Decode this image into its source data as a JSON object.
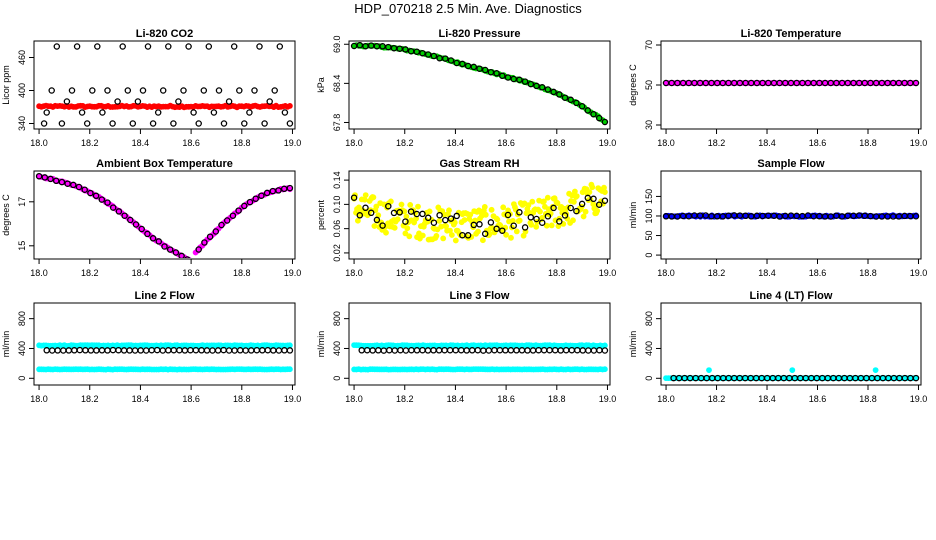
{
  "page_title": "HDP_070218  2.5 Min. Ave. Diagnostics",
  "colors": {
    "red": "#ff0000",
    "green": "#00cc00",
    "magenta": "#ff00ff",
    "yellow": "#ffff00",
    "blue": "#0000ff",
    "cyan": "#00ffff",
    "black": "#000000"
  },
  "chart_data": [
    {
      "type": "scatter",
      "title": "Li-820 CO2",
      "ylabel": "Licor ppm",
      "xlabel": "",
      "xlim": [
        17.98,
        19.01
      ],
      "ylim": [
        330,
        490
      ],
      "xticks": [
        18.0,
        18.2,
        18.4,
        18.6,
        18.8,
        19.0
      ],
      "xtick_labels": [
        "18.0",
        "18.2",
        "18.4",
        "18.6",
        "18.8",
        "19.0"
      ],
      "yticks": [
        340,
        400,
        460
      ],
      "ytick_labels": [
        "340",
        "400",
        "460"
      ],
      "series": [
        {
          "color": "red",
          "filled": true,
          "x_range": [
            18.0,
            18.99
          ],
          "count": 110,
          "model": "const",
          "y": 371,
          "jitter": 1.5
        },
        {
          "color": "black",
          "filled": false,
          "points": [
            [
              18.02,
              340
            ],
            [
              18.03,
              360
            ],
            [
              18.05,
              400
            ],
            [
              18.07,
              480
            ],
            [
              18.09,
              340
            ],
            [
              18.11,
              380
            ],
            [
              18.13,
              400
            ],
            [
              18.15,
              480
            ],
            [
              18.17,
              360
            ],
            [
              18.19,
              340
            ],
            [
              18.21,
              400
            ],
            [
              18.23,
              480
            ],
            [
              18.25,
              360
            ],
            [
              18.27,
              400
            ],
            [
              18.29,
              340
            ],
            [
              18.31,
              380
            ],
            [
              18.33,
              480
            ],
            [
              18.35,
              400
            ],
            [
              18.37,
              340
            ],
            [
              18.39,
              380
            ],
            [
              18.41,
              400
            ],
            [
              18.43,
              480
            ],
            [
              18.45,
              340
            ],
            [
              18.47,
              360
            ],
            [
              18.49,
              400
            ],
            [
              18.51,
              480
            ],
            [
              18.53,
              340
            ],
            [
              18.55,
              380
            ],
            [
              18.57,
              400
            ],
            [
              18.59,
              480
            ],
            [
              18.61,
              360
            ],
            [
              18.63,
              340
            ],
            [
              18.65,
              400
            ],
            [
              18.67,
              480
            ],
            [
              18.69,
              360
            ],
            [
              18.71,
              400
            ],
            [
              18.73,
              340
            ],
            [
              18.75,
              380
            ],
            [
              18.77,
              480
            ],
            [
              18.79,
              400
            ],
            [
              18.81,
              340
            ],
            [
              18.83,
              360
            ],
            [
              18.85,
              400
            ],
            [
              18.87,
              480
            ],
            [
              18.89,
              340
            ],
            [
              18.91,
              380
            ],
            [
              18.93,
              400
            ],
            [
              18.95,
              480
            ],
            [
              18.97,
              360
            ],
            [
              18.99,
              340
            ]
          ]
        }
      ]
    },
    {
      "type": "scatter",
      "title": "Li-820 Pressure",
      "ylabel": "kPa",
      "xlabel": "",
      "xlim": [
        17.98,
        19.01
      ],
      "ylim": [
        67.7,
        69.05
      ],
      "xticks": [
        18.0,
        18.2,
        18.4,
        18.6,
        18.8,
        19.0
      ],
      "xtick_labels": [
        "18.0",
        "18.2",
        "18.4",
        "18.6",
        "18.8",
        "19.0"
      ],
      "yticks": [
        67.8,
        68.4,
        69.0
      ],
      "ytick_labels": [
        "67.8",
        "68.4",
        "69.0"
      ],
      "series": [
        {
          "color": "green",
          "filled": true,
          "x_range": [
            18.0,
            18.99
          ],
          "count": 110,
          "model": "pressure",
          "jitter": 0.01
        },
        {
          "color": "black",
          "filled": false,
          "x_range": [
            18.0,
            18.99
          ],
          "count": 45,
          "model": "pressure",
          "jitter": 0.01
        }
      ]
    },
    {
      "type": "scatter",
      "title": "Li-820 Temperature",
      "ylabel": "degrees C",
      "xlabel": "",
      "xlim": [
        17.98,
        19.01
      ],
      "ylim": [
        28,
        72
      ],
      "xticks": [
        18.0,
        18.2,
        18.4,
        18.6,
        18.8,
        19.0
      ],
      "xtick_labels": [
        "18.0",
        "18.2",
        "18.4",
        "18.6",
        "18.8",
        "19.0"
      ],
      "yticks": [
        30,
        50,
        70
      ],
      "ytick_labels": [
        "30",
        "50",
        "70"
      ],
      "series": [
        {
          "color": "magenta",
          "filled": true,
          "x_range": [
            18.0,
            18.99
          ],
          "count": 110,
          "model": "const",
          "y": 51,
          "jitter": 0
        },
        {
          "color": "black",
          "filled": false,
          "x_range": [
            18.0,
            18.99
          ],
          "count": 45,
          "model": "const",
          "y": 51,
          "jitter": 0
        }
      ]
    },
    {
      "type": "scatter",
      "title": "Ambient Box Temperature",
      "ylabel": "degrees C",
      "xlabel": "",
      "xlim": [
        17.98,
        19.01
      ],
      "ylim": [
        14.4,
        18.4
      ],
      "xticks": [
        18.0,
        18.2,
        18.4,
        18.6,
        18.8,
        19.0
      ],
      "xtick_labels": [
        "18.0",
        "18.2",
        "18.4",
        "18.6",
        "18.8",
        "19.0"
      ],
      "yticks": [
        15,
        17
      ],
      "ytick_labels": [
        "15",
        "17"
      ],
      "series": [
        {
          "color": "magenta",
          "filled": true,
          "x_range": [
            18.0,
            18.99
          ],
          "count": 110,
          "model": "ambient",
          "jitter": 0.03
        },
        {
          "color": "black",
          "filled": false,
          "x_range": [
            18.0,
            18.99
          ],
          "count": 45,
          "model": "ambient",
          "jitter": 0.03
        }
      ]
    },
    {
      "type": "scatter",
      "title": "Gas Stream RH",
      "ylabel": "percent",
      "xlabel": "",
      "xlim": [
        17.98,
        19.01
      ],
      "ylim": [
        0.01,
        0.155
      ],
      "xticks": [
        18.0,
        18.2,
        18.4,
        18.6,
        18.8,
        19.0
      ],
      "xtick_labels": [
        "18.0",
        "18.2",
        "18.4",
        "18.6",
        "18.8",
        "19.0"
      ],
      "yticks": [
        0.02,
        0.06,
        0.1,
        0.14
      ],
      "ytick_labels": [
        "0.02",
        "0.06",
        "0.10",
        "0.14"
      ],
      "series": [
        {
          "color": "yellow",
          "filled": true,
          "x_range": [
            18.0,
            18.99
          ],
          "count": 260,
          "model": "rh",
          "jitter": 0.028
        },
        {
          "color": "black",
          "filled": false,
          "x_range": [
            18.0,
            18.99
          ],
          "count": 45,
          "model": "rh",
          "jitter": 0.018
        }
      ]
    },
    {
      "type": "scatter",
      "title": "Sample Flow",
      "ylabel": "ml/min",
      "xlabel": "",
      "xlim": [
        17.98,
        19.01
      ],
      "ylim": [
        -10,
        215
      ],
      "xticks": [
        18.0,
        18.2,
        18.4,
        18.6,
        18.8,
        19.0
      ],
      "xtick_labels": [
        "18.0",
        "18.2",
        "18.4",
        "18.6",
        "18.8",
        "19.0"
      ],
      "yticks": [
        0,
        50,
        100,
        150
      ],
      "ytick_labels": [
        "0",
        "50",
        "100",
        "150"
      ],
      "series": [
        {
          "color": "blue",
          "filled": true,
          "x_range": [
            18.0,
            18.99
          ],
          "count": 110,
          "model": "const",
          "y": 100,
          "jitter": 2
        },
        {
          "color": "black",
          "filled": false,
          "x_range": [
            18.0,
            18.99
          ],
          "count": 45,
          "model": "const",
          "y": 100,
          "jitter": 1.5
        }
      ]
    },
    {
      "type": "scatter",
      "title": "Line 2 Flow",
      "ylabel": "ml/min",
      "xlabel": "",
      "xlim": [
        17.98,
        19.01
      ],
      "ylim": [
        -90,
        1010
      ],
      "xticks": [
        18.0,
        18.2,
        18.4,
        18.6,
        18.8,
        19.0
      ],
      "xtick_labels": [
        "18.0",
        "18.2",
        "18.4",
        "18.6",
        "18.8",
        "19.0"
      ],
      "yticks": [
        0,
        400,
        800
      ],
      "ytick_labels": [
        "0",
        "400",
        "800"
      ],
      "series": [
        {
          "color": "cyan",
          "filled": true,
          "x_range": [
            18.0,
            18.99
          ],
          "count": 110,
          "model": "const",
          "y": 440,
          "jitter": 5
        },
        {
          "color": "cyan",
          "filled": true,
          "x_range": [
            18.0,
            18.99
          ],
          "count": 110,
          "model": "const",
          "y": 120,
          "jitter": 3
        },
        {
          "color": "black",
          "filled": false,
          "x_range": [
            18.03,
            18.99
          ],
          "count": 45,
          "model": "const",
          "y": 375,
          "jitter": 3
        }
      ]
    },
    {
      "type": "scatter",
      "title": "Line 3 Flow",
      "ylabel": "ml/min",
      "xlabel": "",
      "xlim": [
        17.98,
        19.01
      ],
      "ylim": [
        -90,
        1010
      ],
      "xticks": [
        18.0,
        18.2,
        18.4,
        18.6,
        18.8,
        19.0
      ],
      "xtick_labels": [
        "18.0",
        "18.2",
        "18.4",
        "18.6",
        "18.8",
        "19.0"
      ],
      "yticks": [
        0,
        400,
        800
      ],
      "ytick_labels": [
        "0",
        "400",
        "800"
      ],
      "series": [
        {
          "color": "cyan",
          "filled": true,
          "x_range": [
            18.0,
            18.99
          ],
          "count": 110,
          "model": "const",
          "y": 440,
          "jitter": 5
        },
        {
          "color": "cyan",
          "filled": true,
          "x_range": [
            18.0,
            18.99
          ],
          "count": 110,
          "model": "const",
          "y": 120,
          "jitter": 3
        },
        {
          "color": "black",
          "filled": false,
          "x_range": [
            18.03,
            18.99
          ],
          "count": 45,
          "model": "const",
          "y": 375,
          "jitter": 3
        }
      ]
    },
    {
      "type": "scatter",
      "title": "Line 4 (LT) Flow",
      "ylabel": "ml/min",
      "xlabel": "",
      "xlim": [
        17.98,
        19.01
      ],
      "ylim": [
        -90,
        1010
      ],
      "xticks": [
        18.0,
        18.2,
        18.4,
        18.6,
        18.8,
        19.0
      ],
      "xtick_labels": [
        "18.0",
        "18.2",
        "18.4",
        "18.6",
        "18.8",
        "19.0"
      ],
      "yticks": [
        0,
        400,
        800
      ],
      "ytick_labels": [
        "0",
        "400",
        "800"
      ],
      "series": [
        {
          "color": "cyan",
          "filled": true,
          "x_range": [
            18.0,
            18.99
          ],
          "count": 110,
          "model": "const",
          "y": 2,
          "jitter": 0
        },
        {
          "color": "cyan",
          "filled": true,
          "points": [
            [
              18.17,
              110
            ],
            [
              18.5,
              110
            ],
            [
              18.83,
              110
            ]
          ]
        },
        {
          "color": "black",
          "filled": false,
          "x_range": [
            18.03,
            18.99
          ],
          "count": 45,
          "model": "const",
          "y": 2,
          "jitter": 0
        }
      ]
    }
  ]
}
